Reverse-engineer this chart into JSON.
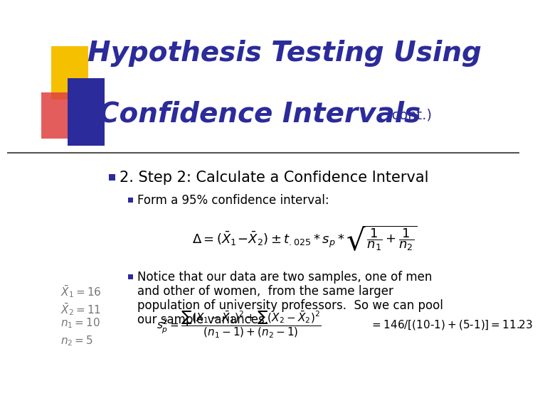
{
  "bg_color": "#ffffff",
  "title_line1": "Hypothesis Testing Using",
  "title_line2": "Confidence Intervals",
  "title_cont": "(cont.)",
  "title_color": "#2B2B9B",
  "title_fontsize": 28,
  "cont_fontsize": 14,
  "bullet1_text": "2. Step 2: Calculate a Confidence Interval",
  "bullet1_fontsize": 15,
  "bullet2a_text": "Form a 95% confidence interval:",
  "bullet2a_fontsize": 12,
  "formula1": "$\\Delta = (\\bar{X}_1\\!-\\!\\bar{X}_2) \\pm t_{.025} * s_p * \\sqrt{\\dfrac{1}{n_1} + \\dfrac{1}{n_2}}$",
  "formula1_fontsize": 13,
  "bullet2b_lines": [
    "Notice that our data are two samples, one of men",
    "and other of women,  from the same larger",
    "population of university professors.  So we can pool",
    "our sample variances."
  ],
  "bullet2b_fontsize": 12,
  "side_var1": "$\\bar{X}_1 = 16$",
  "side_var2": "$\\bar{X}_2 = 11$",
  "side_var3": "$n_1 = 10$",
  "side_var4": "$n_2 = 5$",
  "side_vars_fontsize": 11,
  "formula2_left": "$s^2_p = \\dfrac{\\sum(X_1 - \\bar{X}_1)^2 + \\sum(X_2 - \\bar{X}_2)^2}{(n_1 - 1)+(n_2 - 1)}$",
  "formula2_right": "$= 146 / [(10\\text{-}1) + (5\\text{-}1)]= 11.23$",
  "formula2_fontsize": 11,
  "gold_color": "#F5C000",
  "red_color": "#E04040",
  "blue_color": "#2B2B9B",
  "bullet_color": "#2B2B9B",
  "text_color": "#000000",
  "line_color": "#555555"
}
